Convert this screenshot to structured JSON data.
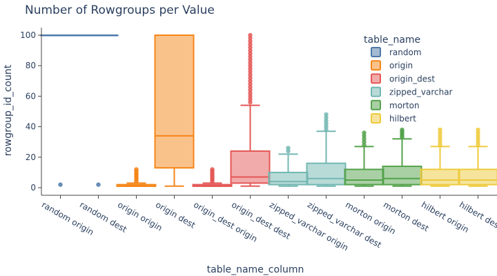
{
  "chart_data": {
    "type": "box",
    "title": "Number of Rowgroups per Value",
    "xlabel": "table_name_column",
    "ylabel": "rowgroup_id_count",
    "ylim": [
      -4,
      105
    ],
    "yticks": [
      0,
      20,
      40,
      60,
      80,
      100
    ],
    "legend": {
      "title": "table_name",
      "placement": "top-right"
    },
    "series": [
      {
        "name": "random",
        "color": "#4c78a8"
      },
      {
        "name": "origin",
        "color": "#f58518"
      },
      {
        "name": "origin_dest",
        "color": "#e45756"
      },
      {
        "name": "zipped_varchar",
        "color": "#72b7b2"
      },
      {
        "name": "morton",
        "color": "#54a24b"
      },
      {
        "name": "hilbert",
        "color": "#eeca3b"
      }
    ],
    "boxes": [
      {
        "category": "random origin",
        "series": "random",
        "min": 100,
        "q1": 100,
        "median": 100,
        "q3": 100,
        "max": 100,
        "outliers": [
          2
        ]
      },
      {
        "category": "random dest",
        "series": "random",
        "min": 100,
        "q1": 100,
        "median": 100,
        "q3": 100,
        "max": 100,
        "outliers": [
          2
        ]
      },
      {
        "category": "origin origin",
        "series": "origin",
        "min": 1,
        "q1": 1,
        "median": 1,
        "q3": 2,
        "max": 3,
        "outliers": [
          4,
          5,
          6,
          7,
          8,
          9,
          10,
          11,
          12
        ]
      },
      {
        "category": "origin dest",
        "series": "origin",
        "min": 1,
        "q1": 13,
        "median": 34,
        "q3": 100,
        "max": 100,
        "outliers": []
      },
      {
        "category": "origin_dest origin",
        "series": "origin_dest",
        "min": 1,
        "q1": 1,
        "median": 1,
        "q3": 2,
        "max": 3,
        "outliers": [
          4,
          5,
          6,
          7,
          8,
          9,
          10,
          11,
          12
        ]
      },
      {
        "category": "origin_dest dest",
        "series": "origin_dest",
        "min": 1,
        "q1": 3,
        "median": 7,
        "q3": 24,
        "max": 54,
        "outliers": [
          56,
          58,
          60,
          62,
          64,
          66,
          68,
          70,
          72,
          74,
          76,
          78,
          80,
          82,
          84,
          86,
          88,
          90,
          92,
          94,
          96,
          98,
          100
        ]
      },
      {
        "category": "zipped_varchar origin",
        "series": "zipped_varchar",
        "min": 1,
        "q1": 2,
        "median": 4,
        "q3": 10,
        "max": 22,
        "outliers": [
          24,
          26
        ]
      },
      {
        "category": "zipped_varchar dest",
        "series": "zipped_varchar",
        "min": 1,
        "q1": 2,
        "median": 6,
        "q3": 16,
        "max": 37,
        "outliers": [
          38,
          40,
          42,
          44,
          46,
          48
        ]
      },
      {
        "category": "morton origin",
        "series": "morton",
        "min": 1,
        "q1": 2,
        "median": 5,
        "q3": 12,
        "max": 27,
        "outliers": [
          28,
          30,
          32,
          34,
          36
        ]
      },
      {
        "category": "morton dest",
        "series": "morton",
        "min": 1,
        "q1": 2,
        "median": 6,
        "q3": 14,
        "max": 32,
        "outliers": [
          33,
          34,
          35,
          36,
          37,
          38
        ]
      },
      {
        "category": "hilbert origin",
        "series": "hilbert",
        "min": 1,
        "q1": 2,
        "median": 5,
        "q3": 12,
        "max": 27,
        "outliers": [
          28,
          30,
          32,
          34,
          36,
          38
        ]
      },
      {
        "category": "hilbert dest",
        "series": "hilbert",
        "min": 1,
        "q1": 2,
        "median": 5,
        "q3": 12,
        "max": 27,
        "outliers": [
          28,
          30,
          32,
          34,
          36,
          38
        ]
      }
    ]
  }
}
